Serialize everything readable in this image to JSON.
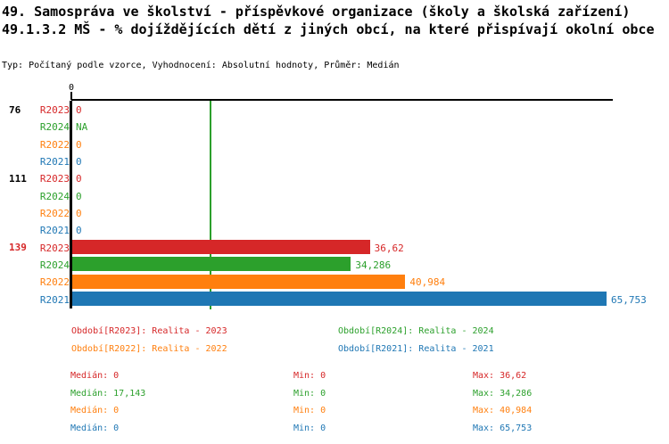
{
  "title": {
    "line1": "49. Samospráva ve školství - příspěvkové organizace (školy a školská zařízení)",
    "line2": "49.1.3.2 MŠ - % dojíždějících dětí z jiných obcí, na které přispívají okolní obce"
  },
  "meta_line": "Typ: Počítaný podle vzorce, Vyhodnocení: Absolutní hodnoty, Průměr: Medián",
  "colors": {
    "R2023": "#d62728",
    "R2024": "#2ca02c",
    "R2022": "#ff7f0e",
    "R2021": "#1f77b4",
    "median_line": "#2ca02c",
    "axis": "#000000",
    "highlight": "#d62728",
    "default_text": "#000000"
  },
  "chart_data": {
    "type": "bar",
    "orientation": "horizontal",
    "title": "49.1.3.2 MŠ - % dojíždějících dětí z jiných obcí, na které přispívají okolní obce",
    "axis_tick_label": "0",
    "x_origin_value": 0,
    "x_max_estimate": 66.5,
    "median_line_value": 17.143,
    "grid": false,
    "series_order": [
      "R2023",
      "R2024",
      "R2022",
      "R2021"
    ],
    "groups": [
      {
        "label": "76",
        "highlighted": false,
        "rows": [
          {
            "series": "R2023",
            "value": 0,
            "value_label": "0"
          },
          {
            "series": "R2024",
            "value": null,
            "value_label": "NA"
          },
          {
            "series": "R2022",
            "value": 0,
            "value_label": "0"
          },
          {
            "series": "R2021",
            "value": 0,
            "value_label": "0"
          }
        ]
      },
      {
        "label": "111",
        "highlighted": false,
        "rows": [
          {
            "series": "R2023",
            "value": 0,
            "value_label": "0"
          },
          {
            "series": "R2024",
            "value": 0,
            "value_label": "0"
          },
          {
            "series": "R2022",
            "value": 0,
            "value_label": "0"
          },
          {
            "series": "R2021",
            "value": 0,
            "value_label": "0"
          }
        ]
      },
      {
        "label": "139",
        "highlighted": true,
        "rows": [
          {
            "series": "R2023",
            "value": 36.62,
            "value_label": "36,62"
          },
          {
            "series": "R2024",
            "value": 34.286,
            "value_label": "34,286"
          },
          {
            "series": "R2022",
            "value": 40.984,
            "value_label": "40,984"
          },
          {
            "series": "R2021",
            "value": 65.753,
            "value_label": "65,753"
          }
        ]
      }
    ]
  },
  "legend": [
    {
      "series": "R2023",
      "label": "Období[R2023]: Realita - 2023"
    },
    {
      "series": "R2024",
      "label": "Období[R2024]: Realita - 2024"
    },
    {
      "series": "R2022",
      "label": "Období[R2022]: Realita - 2022"
    },
    {
      "series": "R2021",
      "label": "Období[R2021]: Realita - 2021"
    }
  ],
  "stats": [
    {
      "series": "R2023",
      "median": "Medián: 0",
      "min": "Min: 0",
      "max": "Max: 36,62"
    },
    {
      "series": "R2024",
      "median": "Medián: 17,143",
      "min": "Min: 0",
      "max": "Max: 34,286"
    },
    {
      "series": "R2022",
      "median": "Medián: 0",
      "min": "Min: 0",
      "max": "Max: 40,984"
    },
    {
      "series": "R2021",
      "median": "Medián: 0",
      "min": "Min: 0",
      "max": "Max: 65,753"
    }
  ]
}
